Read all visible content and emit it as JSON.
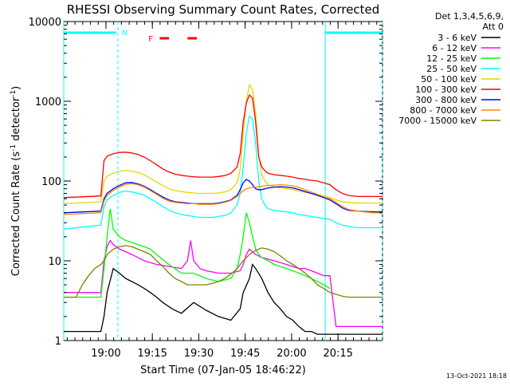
{
  "chart_data": {
    "type": "line",
    "title": "RHESSI Observing Summary Count Rates, Corrected",
    "ylabel_main": "Corrected Count Rate (s",
    "ylabel_sup": "-1",
    "ylabel_mid": " detector",
    "ylabel_sup2": "-1",
    "ylabel_end": ")",
    "xlabel": "Start Time (07-Jan-05 18:46:22)",
    "footer_date": "13-Oct-2021 18:18",
    "yscale": "log",
    "ylim": [
      1,
      10000
    ],
    "xlim_minutes": [
      0,
      103
    ],
    "y_ticks": [
      {
        "v": 1,
        "label": "1"
      },
      {
        "v": 10,
        "label": "10"
      },
      {
        "v": 100,
        "label": "100"
      },
      {
        "v": 1000,
        "label": "1000"
      },
      {
        "v": 10000,
        "label": "10000"
      }
    ],
    "x_ticks": [
      {
        "m": 13.63,
        "label": "19:00"
      },
      {
        "m": 28.63,
        "label": "19:15"
      },
      {
        "m": 43.63,
        "label": "19:30"
      },
      {
        "m": 58.63,
        "label": "19:45"
      },
      {
        "m": 73.63,
        "label": "20:00"
      },
      {
        "m": 88.63,
        "label": "20:15"
      }
    ],
    "legend_header": [
      "Det 1,3,4,5,6,9,",
      "Att 0"
    ],
    "series": [
      {
        "name": "3 - 6 keV",
        "color": "#000000",
        "x": [
          0,
          12,
          13,
          14,
          16,
          18,
          20,
          22,
          24,
          26,
          28,
          30,
          32,
          35,
          38,
          42,
          46,
          50,
          54,
          57,
          58,
          60,
          61,
          62,
          64,
          66,
          68,
          70,
          72,
          74,
          76,
          78,
          80,
          82,
          84,
          86,
          90,
          95,
          100,
          103
        ],
        "y": [
          1.3,
          1.3,
          2,
          4,
          8,
          7,
          6,
          5.5,
          5,
          4.5,
          4,
          3.5,
          3,
          2.5,
          2.2,
          3,
          2.4,
          2,
          1.8,
          2.5,
          4,
          6,
          9,
          8,
          6,
          4,
          3,
          2.5,
          2,
          1.8,
          1.5,
          1.3,
          1.3,
          1.2,
          1.2,
          1.2,
          1.2,
          1.2,
          1.2,
          1.2
        ]
      },
      {
        "name": "6 - 12 keV",
        "color": "#ff00ff",
        "x": [
          0,
          12,
          13,
          14,
          15,
          16,
          18,
          20,
          22,
          24,
          26,
          28,
          30,
          34,
          38,
          40,
          41,
          42,
          44,
          46,
          50,
          54,
          57,
          58,
          59,
          60,
          61,
          62,
          64,
          66,
          68,
          70,
          72,
          74,
          76,
          78,
          80,
          82,
          84,
          86,
          88,
          90,
          95,
          100,
          103
        ],
        "y": [
          4,
          4,
          10,
          15,
          18,
          16,
          14,
          13,
          12,
          11,
          10,
          9.5,
          9,
          8.5,
          8,
          10,
          18,
          10,
          8,
          7.5,
          7,
          7,
          7.5,
          9,
          12,
          14,
          13,
          12,
          11,
          10.5,
          10,
          9.5,
          9,
          8.5,
          8,
          8,
          7.5,
          7,
          6.5,
          6.5,
          1.5,
          1.5,
          1.5,
          1.5,
          1.5
        ]
      },
      {
        "name": "12 - 25 keV",
        "color": "#00ff00",
        "x": [
          0,
          12,
          13,
          14,
          15,
          16,
          18,
          20,
          22,
          24,
          26,
          28,
          30,
          34,
          38,
          42,
          46,
          50,
          54,
          56,
          57,
          58,
          59,
          60,
          61,
          62,
          63,
          64,
          66,
          68,
          70,
          72,
          74,
          76,
          78,
          80,
          82,
          84,
          86
        ],
        "y": [
          3.5,
          3.5,
          8,
          20,
          45,
          25,
          20,
          18,
          17,
          16,
          15,
          14,
          12,
          9,
          7,
          7,
          6,
          5.5,
          6,
          8,
          12,
          20,
          40,
          30,
          20,
          14,
          12,
          11,
          10,
          9,
          8.5,
          8,
          7.5,
          7,
          6.5,
          6,
          5.5,
          5,
          4.5
        ]
      },
      {
        "name": "25 - 50 keV",
        "color": "#00ffff",
        "x": [
          0,
          12,
          13,
          14,
          16,
          18,
          20,
          22,
          24,
          26,
          28,
          30,
          32,
          34,
          36,
          38,
          40,
          42,
          44,
          46,
          48,
          50,
          52,
          54,
          56,
          57,
          58,
          59,
          60,
          61,
          62,
          63,
          64,
          65,
          66,
          68,
          70,
          72,
          74,
          76,
          78,
          80,
          82,
          84,
          86,
          88,
          90,
          92,
          95,
          100,
          103
        ],
        "y": [
          25,
          28,
          48,
          58,
          66,
          72,
          75,
          73,
          70,
          66,
          60,
          54,
          48,
          43,
          40,
          38,
          37,
          36,
          35,
          35,
          35,
          36,
          37,
          40,
          50,
          70,
          150,
          400,
          650,
          600,
          300,
          100,
          60,
          50,
          45,
          43,
          42,
          41,
          40,
          38,
          37,
          36,
          35,
          34,
          33,
          30,
          28,
          27,
          26,
          26,
          26
        ]
      },
      {
        "name": "50 - 100 keV",
        "color": "#e6d600",
        "x": [
          0,
          12,
          13,
          14,
          16,
          18,
          20,
          22,
          24,
          26,
          28,
          30,
          32,
          34,
          36,
          38,
          40,
          42,
          44,
          46,
          48,
          50,
          52,
          54,
          56,
          57,
          58,
          59,
          60,
          61,
          62,
          63,
          64,
          65,
          66,
          68,
          70,
          72,
          74,
          76,
          78,
          80,
          82,
          84,
          86,
          88,
          90,
          92,
          95,
          100,
          103
        ],
        "y": [
          52,
          55,
          100,
          115,
          125,
          132,
          136,
          133,
          128,
          120,
          108,
          97,
          88,
          80,
          76,
          74,
          72,
          71,
          70,
          70,
          70,
          71,
          73,
          78,
          95,
          140,
          400,
          1000,
          1600,
          1400,
          700,
          200,
          120,
          100,
          90,
          85,
          82,
          80,
          78,
          75,
          72,
          70,
          68,
          65,
          62,
          58,
          55,
          54,
          53,
          53,
          53
        ]
      },
      {
        "name": "100 - 300 keV",
        "color": "#ff0000",
        "x": [
          0,
          12,
          13,
          14,
          16,
          18,
          20,
          22,
          24,
          26,
          28,
          30,
          32,
          34,
          36,
          38,
          40,
          42,
          44,
          46,
          48,
          50,
          52,
          54,
          56,
          57,
          58,
          59,
          60,
          61,
          62,
          63,
          64,
          65,
          66,
          68,
          70,
          72,
          74,
          76,
          78,
          80,
          82,
          84,
          86,
          88,
          90,
          92,
          95,
          100,
          103
        ],
        "y": [
          62,
          65,
          180,
          205,
          220,
          228,
          230,
          225,
          215,
          200,
          180,
          160,
          142,
          130,
          122,
          118,
          115,
          113,
          112,
          112,
          112,
          114,
          117,
          125,
          150,
          220,
          550,
          950,
          1200,
          1100,
          550,
          200,
          150,
          135,
          125,
          120,
          118,
          115,
          112,
          108,
          105,
          102,
          100,
          95,
          90,
          78,
          70,
          66,
          64,
          64,
          64
        ]
      },
      {
        "name": "300 - 800 keV",
        "color": "#0000ff",
        "x": [
          0,
          12,
          13,
          14,
          16,
          18,
          20,
          22,
          24,
          26,
          28,
          30,
          32,
          34,
          36,
          38,
          40,
          42,
          44,
          46,
          48,
          50,
          52,
          54,
          56,
          57,
          58,
          59,
          60,
          61,
          62,
          63,
          64,
          65,
          66,
          68,
          70,
          72,
          74,
          76,
          78,
          80,
          82,
          84,
          86,
          88,
          90,
          92,
          95,
          100,
          103
        ],
        "y": [
          40,
          42,
          60,
          70,
          80,
          88,
          95,
          96,
          92,
          86,
          78,
          70,
          63,
          58,
          55,
          54,
          53,
          52,
          52,
          52,
          52,
          53,
          55,
          58,
          66,
          78,
          95,
          105,
          100,
          90,
          80,
          78,
          78,
          80,
          82,
          84,
          85,
          84,
          82,
          78,
          74,
          70,
          66,
          62,
          58,
          52,
          46,
          43,
          42,
          41,
          41
        ]
      },
      {
        "name": "800 - 7000 keV",
        "color": "#ff8c00",
        "x": [
          0,
          12,
          13,
          14,
          16,
          18,
          20,
          22,
          24,
          26,
          28,
          30,
          32,
          34,
          36,
          38,
          40,
          42,
          44,
          46,
          48,
          50,
          52,
          54,
          56,
          57,
          58,
          59,
          60,
          61,
          62,
          63,
          64,
          65,
          66,
          68,
          70,
          72,
          74,
          76,
          78,
          80,
          82,
          84,
          86,
          88,
          90,
          92,
          95,
          100,
          103
        ],
        "y": [
          38,
          40,
          56,
          66,
          76,
          84,
          91,
          93,
          90,
          84,
          76,
          68,
          61,
          56,
          54,
          53,
          52,
          52,
          51,
          51,
          51,
          52,
          54,
          57,
          64,
          70,
          76,
          80,
          82,
          83,
          84,
          85,
          86,
          87,
          88,
          89,
          90,
          89,
          87,
          83,
          78,
          73,
          68,
          64,
          60,
          54,
          48,
          44,
          42,
          40,
          40
        ]
      },
      {
        "name": "7000 - 15000 keV",
        "color": "#808000",
        "x": [
          0,
          4,
          6,
          8,
          10,
          12,
          13,
          14,
          16,
          18,
          20,
          22,
          24,
          26,
          28,
          30,
          32,
          34,
          36,
          38,
          40,
          42,
          44,
          46,
          48,
          50,
          52,
          54,
          56,
          58,
          60,
          62,
          64,
          66,
          68,
          70,
          72,
          74,
          76,
          78,
          80,
          82,
          84,
          86,
          88,
          90,
          92,
          95,
          100,
          103
        ],
        "y": [
          3.5,
          3.5,
          5,
          6.5,
          8,
          9,
          10,
          12,
          14,
          15,
          15.5,
          15,
          14,
          13,
          12,
          10,
          8.5,
          7,
          6,
          5.5,
          5,
          5,
          5,
          5,
          5.2,
          5.5,
          6,
          6.8,
          8,
          10,
          12,
          13.5,
          14.5,
          14,
          13,
          11.5,
          10,
          9,
          8,
          7,
          6,
          5,
          4.5,
          4,
          3.8,
          3.6,
          3.5,
          3.5,
          3.5,
          3.5
        ]
      }
    ],
    "attenuator_bars": [
      {
        "m0": 0,
        "m1": 17,
        "color": "#00ffff"
      },
      {
        "m0": 84.5,
        "m1": 103,
        "color": "#00ffff"
      }
    ],
    "flare_marks": [
      {
        "m0": 31,
        "m1": 34,
        "color": "#ff0000"
      },
      {
        "m0": 40,
        "m1": 43,
        "color": "#ff0000"
      }
    ],
    "flare_label": "F",
    "night_label": "N",
    "night_edges": [
      {
        "m": 0,
        "style": "solid"
      },
      {
        "m": 17.5,
        "style": "dashed"
      },
      {
        "m": 84.5,
        "style": "solid"
      },
      {
        "m": 103,
        "style": "dashed"
      }
    ]
  }
}
